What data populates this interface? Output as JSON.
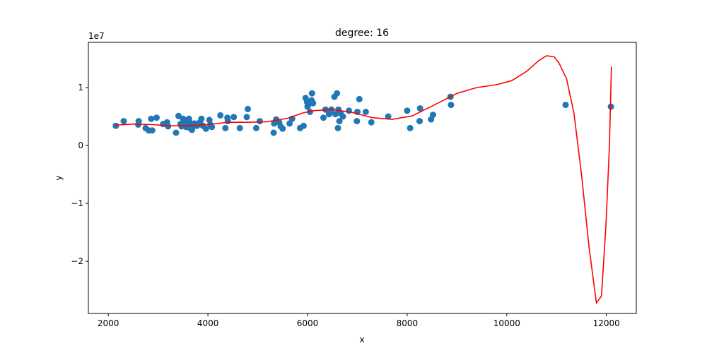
{
  "chart_data": {
    "type": "scatter",
    "title": "degree: 16",
    "xlabel": "x",
    "ylabel": "y",
    "y_offset_label": "1e7",
    "xlim": [
      1600,
      12600
    ],
    "ylim": [
      -2.9,
      1.78
    ],
    "x_ticks": [
      2000,
      4000,
      6000,
      8000,
      10000,
      12000
    ],
    "x_tick_labels": [
      "2000",
      "4000",
      "6000",
      "8000",
      "10000",
      "12000"
    ],
    "y_ticks": [
      -2,
      -1,
      0,
      1
    ],
    "y_tick_labels": [
      "−2",
      "−1",
      "0",
      "1"
    ],
    "grid": false,
    "legend": "none",
    "colors": {
      "points": "#1f77b4",
      "curve": "#ff0000",
      "axes": "#000000"
    },
    "series": [
      {
        "kind": "scatter",
        "points": [
          [
            2150,
            0.34
          ],
          [
            2310,
            0.42
          ],
          [
            2600,
            0.36
          ],
          [
            2610,
            0.42
          ],
          [
            2750,
            0.3
          ],
          [
            2810,
            0.26
          ],
          [
            2860,
            0.46
          ],
          [
            2880,
            0.26
          ],
          [
            2970,
            0.48
          ],
          [
            3100,
            0.37
          ],
          [
            3180,
            0.4
          ],
          [
            3200,
            0.33
          ],
          [
            3360,
            0.22
          ],
          [
            3410,
            0.51
          ],
          [
            3450,
            0.37
          ],
          [
            3470,
            0.33
          ],
          [
            3500,
            0.46
          ],
          [
            3520,
            0.39
          ],
          [
            3560,
            0.32
          ],
          [
            3580,
            0.36
          ],
          [
            3600,
            0.41
          ],
          [
            3620,
            0.46
          ],
          [
            3640,
            0.3
          ],
          [
            3660,
            0.38
          ],
          [
            3680,
            0.27
          ],
          [
            3700,
            0.33
          ],
          [
            3730,
            0.38
          ],
          [
            3780,
            0.34
          ],
          [
            3800,
            0.36
          ],
          [
            3840,
            0.4
          ],
          [
            3870,
            0.46
          ],
          [
            3900,
            0.34
          ],
          [
            3960,
            0.29
          ],
          [
            4030,
            0.44
          ],
          [
            4050,
            0.36
          ],
          [
            4080,
            0.32
          ],
          [
            4250,
            0.52
          ],
          [
            4350,
            0.3
          ],
          [
            4390,
            0.48
          ],
          [
            4400,
            0.42
          ],
          [
            4520,
            0.49
          ],
          [
            4640,
            0.3
          ],
          [
            4780,
            0.49
          ],
          [
            4800,
            0.63
          ],
          [
            4970,
            0.3
          ],
          [
            5040,
            0.42
          ],
          [
            5320,
            0.22
          ],
          [
            5330,
            0.38
          ],
          [
            5370,
            0.45
          ],
          [
            5430,
            0.4
          ],
          [
            5460,
            0.33
          ],
          [
            5500,
            0.29
          ],
          [
            5640,
            0.38
          ],
          [
            5690,
            0.46
          ],
          [
            5850,
            0.3
          ],
          [
            5920,
            0.34
          ],
          [
            5960,
            0.82
          ],
          [
            5990,
            0.75
          ],
          [
            6000,
            0.67
          ],
          [
            6030,
            0.72
          ],
          [
            6050,
            0.58
          ],
          [
            6080,
            0.78
          ],
          [
            6090,
            0.9
          ],
          [
            6110,
            0.73
          ],
          [
            6320,
            0.48
          ],
          [
            6360,
            0.62
          ],
          [
            6430,
            0.54
          ],
          [
            6460,
            0.58
          ],
          [
            6480,
            0.62
          ],
          [
            6540,
            0.84
          ],
          [
            6560,
            0.54
          ],
          [
            6590,
            0.9
          ],
          [
            6610,
            0.3
          ],
          [
            6620,
            0.62
          ],
          [
            6640,
            0.42
          ],
          [
            6660,
            0.56
          ],
          [
            6710,
            0.5
          ],
          [
            6830,
            0.6
          ],
          [
            6990,
            0.42
          ],
          [
            7000,
            0.58
          ],
          [
            7040,
            0.8
          ],
          [
            7170,
            0.58
          ],
          [
            7280,
            0.4
          ],
          [
            7620,
            0.5
          ],
          [
            8000,
            0.6
          ],
          [
            8060,
            0.3
          ],
          [
            8250,
            0.42
          ],
          [
            8260,
            0.64
          ],
          [
            8480,
            0.45
          ],
          [
            8520,
            0.53
          ],
          [
            8870,
            0.84
          ],
          [
            8880,
            0.7
          ],
          [
            11180,
            0.7
          ],
          [
            12090,
            0.67
          ]
        ]
      },
      {
        "kind": "line",
        "points": [
          [
            2150,
            0.35
          ],
          [
            2500,
            0.37
          ],
          [
            2900,
            0.36
          ],
          [
            3200,
            0.34
          ],
          [
            3600,
            0.34
          ],
          [
            4000,
            0.36
          ],
          [
            4400,
            0.4
          ],
          [
            4800,
            0.4
          ],
          [
            5200,
            0.41
          ],
          [
            5600,
            0.47
          ],
          [
            5900,
            0.56
          ],
          [
            6100,
            0.6
          ],
          [
            6500,
            0.62
          ],
          [
            6900,
            0.57
          ],
          [
            7300,
            0.48
          ],
          [
            7700,
            0.45
          ],
          [
            8100,
            0.51
          ],
          [
            8500,
            0.68
          ],
          [
            9000,
            0.9
          ],
          [
            9400,
            1.0
          ],
          [
            9800,
            1.05
          ],
          [
            10100,
            1.12
          ],
          [
            10400,
            1.28
          ],
          [
            10650,
            1.47
          ],
          [
            10800,
            1.55
          ],
          [
            10950,
            1.53
          ],
          [
            11050,
            1.42
          ],
          [
            11200,
            1.15
          ],
          [
            11350,
            0.55
          ],
          [
            11500,
            -0.5
          ],
          [
            11650,
            -1.75
          ],
          [
            11800,
            -2.72
          ],
          [
            11900,
            -2.6
          ],
          [
            11990,
            -1.4
          ],
          [
            12060,
            0.0
          ],
          [
            12100,
            1.36
          ]
        ]
      }
    ]
  }
}
